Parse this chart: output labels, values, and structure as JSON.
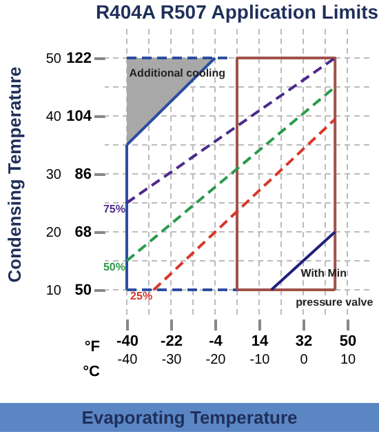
{
  "chart_data": {
    "type": "line",
    "title": "R404A R507  Application Limits",
    "xlabel": "Evaporating Temperature",
    "y2label": "Condensing Temperature",
    "xlim": [
      -49,
      59
    ],
    "xticks": [
      -40,
      {
        "value": -31,
        "label": null
      },
      -22,
      {
        "value": -13,
        "label": null
      },
      -4,
      {
        "value": 5,
        "label": null
      },
      14,
      {
        "value": 23,
        "label": null
      },
      32,
      {
        "value": 41,
        "label": null
      },
      50
    ],
    "x2lim": [
      -45,
      15
    ],
    "x2ticks": [
      -40,
      -30,
      -20,
      -10,
      0,
      10
    ],
    "ylim": [
      41,
      131
    ],
    "yticks": [
      50,
      {
        "value": 59,
        "label": null
      },
      68,
      {
        "value": 77,
        "label": null
      },
      86,
      {
        "value": 95,
        "label": null
      },
      104,
      {
        "value": 113,
        "label": null
      },
      122
    ],
    "y2lim": [
      5,
      55
    ],
    "y2ticks": [
      10,
      20,
      30,
      40,
      50
    ],
    "grid": true,
    "series": [
      {
        "color": "#2b4ea0",
        "line_style": "solid",
        "x": [
          -40,
          -4
        ],
        "values": [
          95,
          122
        ],
        "lower": [
          95,
          122
        ],
        "upper": [
          122,
          122
        ]
      },
      {
        "color": "#2b4ea0",
        "line_style": "solid",
        "x": [
          -40,
          -40
        ],
        "values": [
          50,
          95
        ]
      },
      {
        "color": "#2b4ea0",
        "line_style": "dashed",
        "x": [
          -40,
          1
        ],
        "values": [
          122,
          122
        ]
      },
      {
        "color": "#2b4ea0",
        "line_style": "dashed",
        "x": [
          -40,
          5
        ],
        "values": [
          50,
          50
        ]
      },
      {
        "color": "#a0524a",
        "line_style": "solid",
        "x": [
          5,
          5,
          45,
          45
        ],
        "values": [
          50,
          122,
          122,
          50
        ]
      },
      {
        "color": "#a0524a",
        "line_style": "solid",
        "x": [
          5,
          45
        ],
        "values": [
          50,
          50
        ]
      },
      {
        "name": "75%",
        "color": "#4b2a8a",
        "line_style": "dashed",
        "x": [
          -40,
          45
        ],
        "values": [
          77,
          122
        ]
      },
      {
        "name": "50%",
        "color": "#2a9a4a",
        "line_style": "dashed",
        "x": [
          -40,
          45
        ],
        "values": [
          59,
          113
        ]
      },
      {
        "name": "25%",
        "color": "#d8372a",
        "line_style": "dashed",
        "x": [
          -29,
          45
        ],
        "values": [
          50,
          103
        ]
      },
      {
        "color": "#20207a",
        "line_style": "solid",
        "x": [
          19,
          45
        ],
        "values": [
          50,
          68
        ]
      }
    ],
    "annotations": [
      "°F",
      "°C",
      "Additional cooling",
      "With Min",
      "pressure valve"
    ]
  }
}
